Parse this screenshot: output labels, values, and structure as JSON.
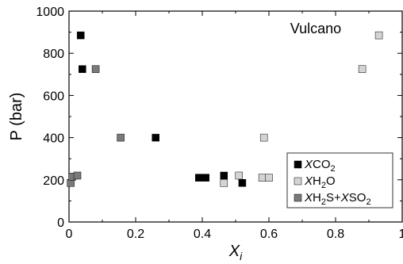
{
  "chart_data": {
    "type": "scatter",
    "xlabel": "X",
    "xlabel_sub": "i",
    "ylabel": "P (bar)",
    "xlim": [
      0,
      1
    ],
    "ylim": [
      0,
      1000
    ],
    "xticks": [
      "0",
      "0.2",
      "0.4",
      "0.6",
      "0.8",
      "1"
    ],
    "yticks": [
      "0",
      "200",
      "400",
      "600",
      "800",
      "1000"
    ],
    "grid": false,
    "annotation": "Vulcano",
    "legend_position": "bottom-right",
    "series": [
      {
        "name": "XCO2",
        "color": "#000000",
        "x": [
          0.035,
          0.04,
          0.26,
          0.39,
          0.41,
          0.465,
          0.52
        ],
        "y": [
          885,
          725,
          400,
          210,
          210,
          220,
          185
        ]
      },
      {
        "name": "XH2O",
        "color": "#d4d4d4",
        "x": [
          0.465,
          0.51,
          0.58,
          0.585,
          0.6,
          0.88,
          0.93
        ],
        "y": [
          185,
          220,
          210,
          400,
          210,
          725,
          885
        ]
      },
      {
        "name": "XH2S+XSO2",
        "color": "#7a7a7a",
        "x": [
          0.005,
          0.01,
          0.025,
          0.08,
          0.155
        ],
        "y": [
          185,
          215,
          220,
          725,
          400
        ]
      }
    ]
  }
}
